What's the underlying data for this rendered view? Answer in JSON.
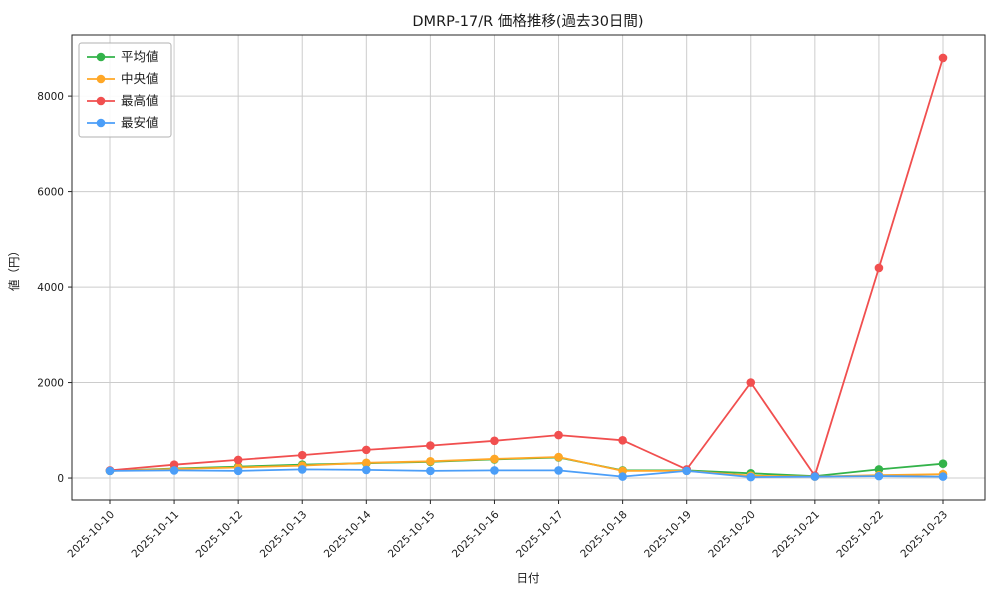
{
  "chart_data": {
    "type": "line",
    "title": "DMRP-17/R 価格推移(過去30日間)",
    "xlabel": "日付",
    "ylabel": "値（円）",
    "categories": [
      "2025-10-10",
      "2025-10-11",
      "2025-10-12",
      "2025-10-13",
      "2025-10-14",
      "2025-10-15",
      "2025-10-16",
      "2025-10-17",
      "2025-10-18",
      "2025-10-19",
      "2025-10-20",
      "2025-10-21",
      "2025-10-22",
      "2025-10-23"
    ],
    "series": [
      {
        "name": "平均値",
        "color": "#33b34a",
        "values": [
          150,
          200,
          240,
          280,
          310,
          340,
          390,
          430,
          160,
          160,
          100,
          40,
          180,
          300
        ]
      },
      {
        "name": "中央値",
        "color": "#ffa726",
        "values": [
          150,
          190,
          220,
          260,
          320,
          350,
          400,
          440,
          150,
          150,
          50,
          30,
          60,
          80
        ]
      },
      {
        "name": "最高値",
        "color": "#f14f4f",
        "values": [
          160,
          280,
          380,
          480,
          590,
          680,
          780,
          900,
          790,
          180,
          2000,
          50,
          4400,
          8800
        ]
      },
      {
        "name": "最安値",
        "color": "#4b9ef8",
        "values": [
          150,
          160,
          150,
          180,
          170,
          150,
          160,
          160,
          30,
          150,
          20,
          30,
          40,
          30
        ]
      }
    ],
    "yticks": [
      0,
      2000,
      4000,
      6000,
      8000
    ],
    "ylim": [
      -460,
      9280
    ],
    "grid": true,
    "legend_position": "upper-left",
    "theme": {
      "grid_color": "#cccccc",
      "axis_color": "#262626",
      "text_color": "#1a1a1a",
      "legend_border": "#b0b0b0",
      "background": "#ffffff"
    }
  }
}
